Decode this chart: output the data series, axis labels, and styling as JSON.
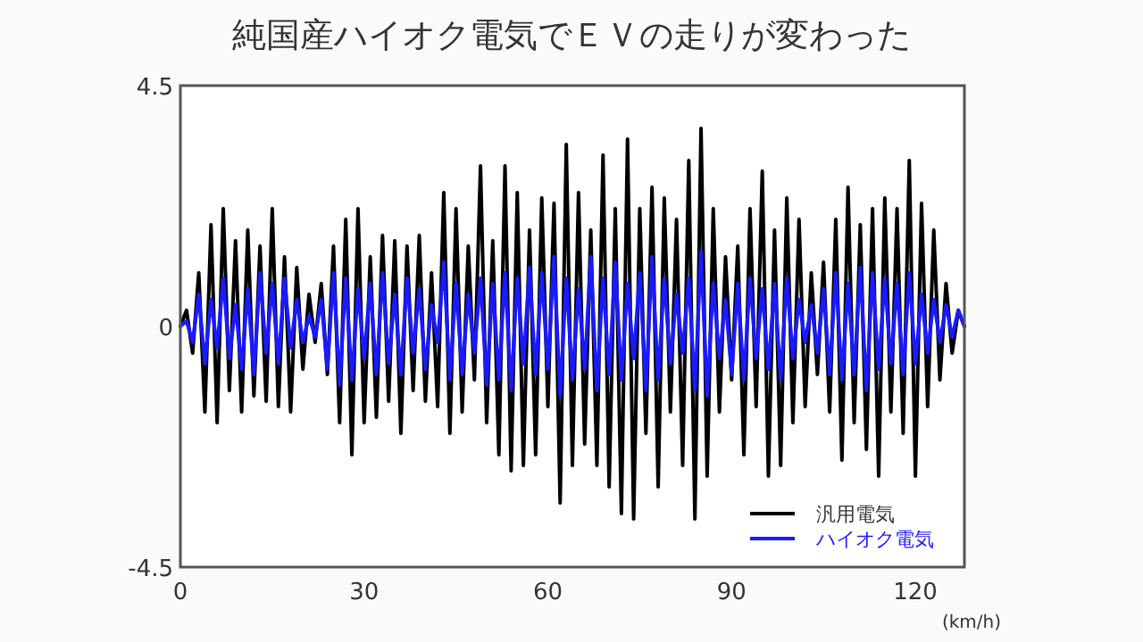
{
  "chart_data": {
    "type": "line",
    "title": "純国産ハイオク電気でＥＶの走りが変わった",
    "xlabel": "(km/h)",
    "x": [
      0,
      1,
      2,
      3,
      4,
      5,
      6,
      7,
      8,
      9,
      10,
      11,
      12,
      13,
      14,
      15,
      16,
      17,
      18,
      19,
      20,
      21,
      22,
      23,
      24,
      25,
      26,
      27,
      28,
      29,
      30,
      31,
      32,
      33,
      34,
      35,
      36,
      37,
      38,
      39,
      40,
      41,
      42,
      43,
      44,
      45,
      46,
      47,
      48,
      49,
      50,
      51,
      52,
      53,
      54,
      55,
      56,
      57,
      58,
      59,
      60,
      61,
      62,
      63,
      64,
      65,
      66,
      67,
      68,
      69,
      70,
      71,
      72,
      73,
      74,
      75,
      76,
      77,
      78,
      79,
      80,
      81,
      82,
      83,
      84,
      85,
      86,
      87,
      88,
      89,
      90,
      91,
      92,
      93,
      94,
      95,
      96,
      97,
      98,
      99,
      100,
      101,
      102,
      103,
      104,
      105,
      106,
      107,
      108,
      109,
      110,
      111,
      112,
      113,
      114,
      115,
      116,
      117,
      118,
      119,
      120,
      121,
      122,
      123,
      124,
      125,
      126,
      127,
      128
    ],
    "series": [
      {
        "name": "汎用電気",
        "color": "#000000",
        "values": [
          0,
          0.3,
          -0.5,
          1.0,
          -1.6,
          1.9,
          -1.8,
          2.2,
          -1.2,
          1.6,
          -1.6,
          1.8,
          -1.3,
          1.5,
          -1.4,
          2.2,
          -1.5,
          1.3,
          -1.6,
          1.1,
          -0.8,
          0.6,
          -0.3,
          0.8,
          -0.9,
          1.5,
          -1.8,
          2.0,
          -2.4,
          2.2,
          -1.8,
          1.3,
          -1.7,
          1.7,
          -1.4,
          1.6,
          -2.0,
          1.5,
          -1.2,
          1.7,
          -1.4,
          1.0,
          -1.5,
          2.5,
          -2.0,
          2.2,
          -1.6,
          1.5,
          -1.0,
          3.0,
          -1.8,
          1.6,
          -2.4,
          3.0,
          -2.7,
          2.5,
          -2.6,
          1.8,
          -2.4,
          2.4,
          -1.5,
          2.3,
          -3.3,
          3.4,
          -2.6,
          2.5,
          -2.2,
          1.8,
          -2.6,
          3.2,
          -3.0,
          2.2,
          -3.5,
          3.5,
          -3.6,
          2.2,
          -2.0,
          2.6,
          -3.0,
          2.4,
          -1.6,
          2.0,
          -2.6,
          3.1,
          -3.6,
          3.7,
          -2.8,
          2.2,
          -1.6,
          1.3,
          -1.0,
          1.5,
          -2.4,
          2.2,
          -1.5,
          2.9,
          -2.8,
          1.8,
          -2.6,
          2.4,
          -1.8,
          2.0,
          -1.5,
          1.0,
          -0.9,
          1.2,
          -1.6,
          2.0,
          -2.5,
          2.6,
          -1.8,
          1.9,
          -2.3,
          2.2,
          -2.8,
          2.4,
          -1.6,
          2.2,
          -2.0,
          3.1,
          -2.8,
          2.3,
          -1.5,
          1.8,
          -1.0,
          0.8,
          -0.5,
          0.3,
          0
        ]
      },
      {
        "name": "ハイオク電気",
        "color": "#1a1aff",
        "values": [
          0,
          0.1,
          -0.3,
          0.6,
          -0.7,
          0.5,
          -0.4,
          0.9,
          -0.6,
          0.4,
          -0.8,
          0.7,
          -0.9,
          1.0,
          -0.5,
          0.8,
          -0.7,
          0.9,
          -0.4,
          0.5,
          -0.3,
          0.2,
          -0.2,
          0.5,
          -0.8,
          1.0,
          -1.1,
          0.9,
          -1.0,
          0.7,
          -0.6,
          0.8,
          -0.9,
          1.0,
          -0.7,
          0.6,
          -0.9,
          0.9,
          -0.5,
          0.7,
          -0.8,
          0.4,
          -0.3,
          1.2,
          -1.0,
          0.8,
          -0.9,
          0.6,
          -0.5,
          0.9,
          -1.1,
          0.8,
          -1.0,
          1.0,
          -1.2,
          0.9,
          -0.7,
          1.1,
          -0.9,
          1.0,
          -0.8,
          1.3,
          -1.3,
          0.9,
          -1.0,
          0.7,
          -0.8,
          1.3,
          -1.2,
          0.9,
          -0.9,
          1.2,
          -1.0,
          0.8,
          -0.6,
          1.0,
          -1.2,
          1.3,
          -1.0,
          0.9,
          -0.7,
          0.6,
          -0.5,
          0.9,
          -1.2,
          1.4,
          -1.3,
          0.8,
          -0.6,
          0.5,
          -0.9,
          0.8,
          -1.0,
          0.9,
          -0.6,
          0.7,
          -0.8,
          0.8,
          -1.0,
          0.9,
          -0.6,
          0.5,
          -0.3,
          0.4,
          -0.5,
          0.7,
          -0.9,
          1.0,
          -1.0,
          0.8,
          -0.9,
          1.1,
          -1.2,
          1.0,
          -0.8,
          0.9,
          -0.7,
          0.8,
          -0.9,
          1.0,
          -0.7,
          0.6,
          -0.5,
          0.5,
          -0.3,
          0.4,
          -0.2,
          0.3,
          0
        ]
      }
    ],
    "xlim": [
      0,
      128
    ],
    "ylim": [
      -4.5,
      4.5
    ],
    "xticks": [
      0,
      30,
      60,
      90,
      120
    ],
    "yticks": [
      4.5,
      0,
      -4.5
    ],
    "legend": "bottom right",
    "line_style": "solid",
    "marker": "none",
    "grid": false
  }
}
